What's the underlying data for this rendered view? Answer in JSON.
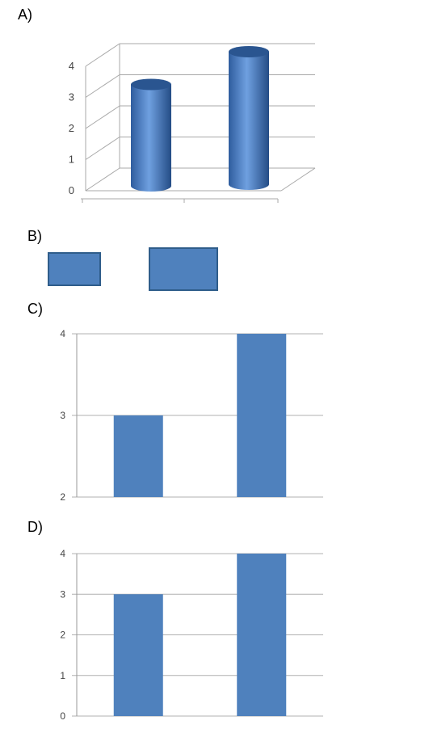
{
  "panel_labels": [
    "A)",
    "B)",
    "C)",
    "D)"
  ],
  "colors": {
    "bar": "#4f81bd",
    "bar_edge": "#2f5d8a",
    "grid": "#b0b0b0",
    "axis": "#999999"
  },
  "chart_data": [
    {
      "panel": "A)",
      "type": "bar",
      "style": "3d-cylinder",
      "values": [
        3,
        4
      ],
      "ylim": [
        0,
        4
      ],
      "yticks": [
        "0",
        "1",
        "2",
        "3",
        "4"
      ],
      "grid": true
    },
    {
      "panel": "B)",
      "type": "area",
      "style": "proportional rectangles",
      "values": [
        3,
        4
      ]
    },
    {
      "panel": "C)",
      "type": "bar",
      "values": [
        3,
        4
      ],
      "ylim": [
        2,
        4
      ],
      "yticks": [
        "2",
        "3",
        "4"
      ],
      "grid": true
    },
    {
      "panel": "D)",
      "type": "bar",
      "values": [
        3,
        4
      ],
      "ylim": [
        0,
        4
      ],
      "yticks": [
        "0",
        "1",
        "2",
        "3",
        "4"
      ],
      "grid": true
    }
  ]
}
